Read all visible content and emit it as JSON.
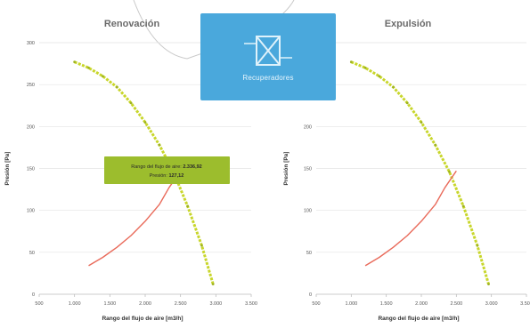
{
  "badge": {
    "label": "Recuperadores",
    "icon": "heat-exchanger-icon",
    "color": "#4aa8dc"
  },
  "chart_data": [
    {
      "type": "line",
      "title": "Renovación",
      "xlabel": "Rango del flujo de aire [m3/h]",
      "ylabel": "Presión [Pa]",
      "xlim": [
        500,
        3500
      ],
      "ylim": [
        0,
        300
      ],
      "xticks": [
        500,
        1000,
        1500,
        2000,
        2500,
        3000,
        3500
      ],
      "xtick_labels": [
        "500",
        "1.000",
        "1.500",
        "2.000",
        "2.500",
        "3.000",
        "3.500"
      ],
      "yticks": [
        0,
        50,
        100,
        150,
        200,
        250,
        300
      ],
      "ytick_labels": [
        "0",
        "50",
        "100",
        "150",
        "200",
        "250",
        "300"
      ],
      "grid": true,
      "series": [
        {
          "color": "#c8d62b",
          "style": "dashed-dotted",
          "x": [
            1000,
            1200,
            1400,
            1600,
            1800,
            2000,
            2200,
            2400,
            2600,
            2800,
            2960
          ],
          "y": [
            277,
            270,
            260,
            247,
            228,
            205,
            178,
            146,
            105,
            58,
            12
          ]
        },
        {
          "color": "#e96a5a",
          "style": "solid",
          "x": [
            1200,
            1400,
            1600,
            1800,
            2000,
            2200,
            2336,
            2500
          ],
          "y": [
            34,
            44,
            56,
            70,
            87,
            107,
            127,
            147
          ]
        }
      ],
      "tooltip": {
        "line1_prefix": "Rango del flujo de aire:",
        "line1_value": "2.336,92",
        "line2_prefix": "Presión:",
        "line2_value": "127,12",
        "color": "#9cbd2d"
      }
    },
    {
      "type": "line",
      "title": "Expulsión",
      "xlabel": "Rango del flujo de aire [m3/h]",
      "ylabel": "Presión [Pa]",
      "xlim": [
        500,
        3500
      ],
      "ylim": [
        0,
        300
      ],
      "xticks": [
        500,
        1000,
        1500,
        2000,
        2500,
        3000,
        3500
      ],
      "xtick_labels": [
        "500",
        "1.000",
        "1.500",
        "2.000",
        "2.500",
        "3.000",
        "3.500"
      ],
      "yticks": [
        0,
        50,
        100,
        150,
        200,
        250,
        300
      ],
      "ytick_labels": [
        "0",
        "50",
        "100",
        "150",
        "200",
        "250",
        "300"
      ],
      "grid": true,
      "series": [
        {
          "color": "#c8d62b",
          "style": "dashed-dotted",
          "x": [
            1000,
            1200,
            1400,
            1600,
            1800,
            2000,
            2200,
            2400,
            2600,
            2800,
            2960
          ],
          "y": [
            277,
            270,
            260,
            247,
            228,
            205,
            178,
            146,
            105,
            58,
            12
          ]
        },
        {
          "color": "#e96a5a",
          "style": "solid",
          "x": [
            1200,
            1400,
            1600,
            1800,
            2000,
            2200,
            2336,
            2500
          ],
          "y": [
            34,
            44,
            56,
            70,
            87,
            107,
            127,
            147
          ]
        }
      ]
    }
  ]
}
